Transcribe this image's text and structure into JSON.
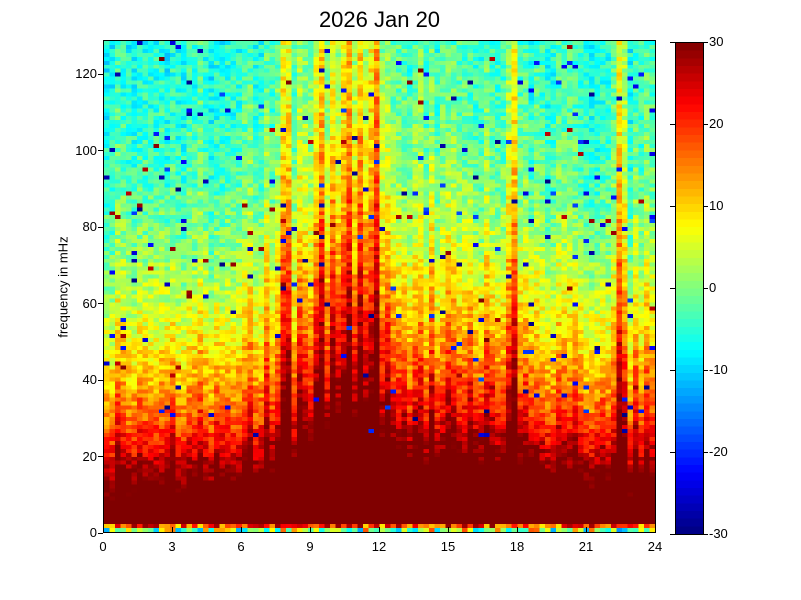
{
  "colors": {
    "background": "#ffffff",
    "axis": "#000000",
    "text": "#000000"
  },
  "chart_data": {
    "type": "heatmap",
    "title": "2026 Jan 20",
    "xlabel": "",
    "ylabel": "frequency in mHz",
    "x_range": [
      0,
      24
    ],
    "y_range": [
      0,
      129
    ],
    "x_ticks": [
      0,
      3,
      6,
      9,
      12,
      15,
      18,
      21,
      24
    ],
    "y_ticks": [
      0,
      20,
      40,
      60,
      80,
      100,
      120
    ],
    "colormap": "jet",
    "color_limits": [
      -30,
      30
    ],
    "colorbar_ticks": [
      30,
      20,
      10,
      0,
      -10,
      -20,
      -30
    ],
    "colorbar_steps": 64,
    "grid": {
      "cols": 100,
      "rows": 124
    },
    "legend": "colorbar-right",
    "pattern_model": {
      "description": "Dynamic spectrum: saturated +30 dB band below ~15 mHz, power decreasing with frequency to ~-6 dB near 125 mHz, narrow vertical burst columns at specific hours, broad daytime enhancement near 8-14 h, random speckle of dark-blue and dark-red single cells, mixed-color lowest rows.",
      "seed": 1337,
      "noise_amp": 4.5,
      "column_jitter": 5,
      "base_profile": [
        [
          0,
          40
        ],
        [
          12,
          33
        ],
        [
          20,
          24
        ],
        [
          30,
          16
        ],
        [
          40,
          11
        ],
        [
          50,
          7
        ],
        [
          60,
          4
        ],
        [
          75,
          0
        ],
        [
          90,
          -3
        ],
        [
          110,
          -5
        ],
        [
          129,
          -6
        ]
      ],
      "broad_bumps": [
        {
          "center": 10.5,
          "sigma": 2.5,
          "amp": 14,
          "fscale": 150
        },
        {
          "center": 16.8,
          "sigma": 2.0,
          "amp": 8,
          "fscale": 80
        }
      ],
      "bursts": [
        {
          "t": 0.7,
          "amp": 10,
          "w": 0.1,
          "fscale": 40
        },
        {
          "t": 1.6,
          "amp": 8,
          "w": 0.1,
          "fscale": 30
        },
        {
          "t": 2.9,
          "amp": 12,
          "w": 0.12,
          "fscale": 45
        },
        {
          "t": 4.1,
          "amp": 8,
          "w": 0.1,
          "fscale": 35
        },
        {
          "t": 5.0,
          "amp": 10,
          "w": 0.12,
          "fscale": 40
        },
        {
          "t": 6.3,
          "amp": 10,
          "w": 0.1,
          "fscale": 45
        },
        {
          "t": 7.1,
          "amp": 10,
          "w": 0.1,
          "fscale": 60
        },
        {
          "t": 7.9,
          "amp": 22,
          "w": 0.12,
          "fscale": 300
        },
        {
          "t": 8.6,
          "amp": 14,
          "w": 0.12,
          "fscale": 90
        },
        {
          "t": 9.4,
          "amp": 22,
          "w": 0.12,
          "fscale": 350
        },
        {
          "t": 10.0,
          "amp": 17,
          "w": 0.15,
          "fscale": 150
        },
        {
          "t": 10.6,
          "amp": 22,
          "w": 0.12,
          "fscale": 350
        },
        {
          "t": 11.2,
          "amp": 19,
          "w": 0.15,
          "fscale": 200
        },
        {
          "t": 11.8,
          "amp": 22,
          "w": 0.12,
          "fscale": 300
        },
        {
          "t": 12.4,
          "amp": 15,
          "w": 0.12,
          "fscale": 100
        },
        {
          "t": 13.0,
          "amp": 11,
          "w": 0.1,
          "fscale": 60
        },
        {
          "t": 13.7,
          "amp": 13,
          "w": 0.1,
          "fscale": 120
        },
        {
          "t": 14.3,
          "amp": 13,
          "w": 0.1,
          "fscale": 110
        },
        {
          "t": 15.1,
          "amp": 13,
          "w": 0.12,
          "fscale": 80
        },
        {
          "t": 16.0,
          "amp": 13,
          "w": 0.12,
          "fscale": 70
        },
        {
          "t": 16.8,
          "amp": 12,
          "w": 0.1,
          "fscale": 70
        },
        {
          "t": 17.8,
          "amp": 20,
          "w": 0.12,
          "fscale": 300
        },
        {
          "t": 18.5,
          "amp": 9,
          "w": 0.1,
          "fscale": 50
        },
        {
          "t": 19.9,
          "amp": 9,
          "w": 0.1,
          "fscale": 50
        },
        {
          "t": 20.6,
          "amp": 10,
          "w": 0.1,
          "fscale": 55
        },
        {
          "t": 21.6,
          "amp": 11,
          "w": 0.1,
          "fscale": 65
        },
        {
          "t": 22.5,
          "amp": 21,
          "w": 0.15,
          "fscale": 350
        },
        {
          "t": 23.2,
          "amp": 13,
          "w": 0.1,
          "fscale": 100
        },
        {
          "t": 23.7,
          "amp": 11,
          "w": 0.08,
          "fscale": 80
        }
      ],
      "speckle": {
        "prob_low": 0.02,
        "low_value": -30,
        "low_range": 12,
        "low_min_freq": 25,
        "prob_high": 0.007,
        "high_value": 26,
        "high_range": 4,
        "high_min_freq": 35
      },
      "bottom_rows": [
        {
          "min": -14,
          "max": 18
        },
        {
          "min": 8,
          "max": 30
        }
      ]
    }
  }
}
